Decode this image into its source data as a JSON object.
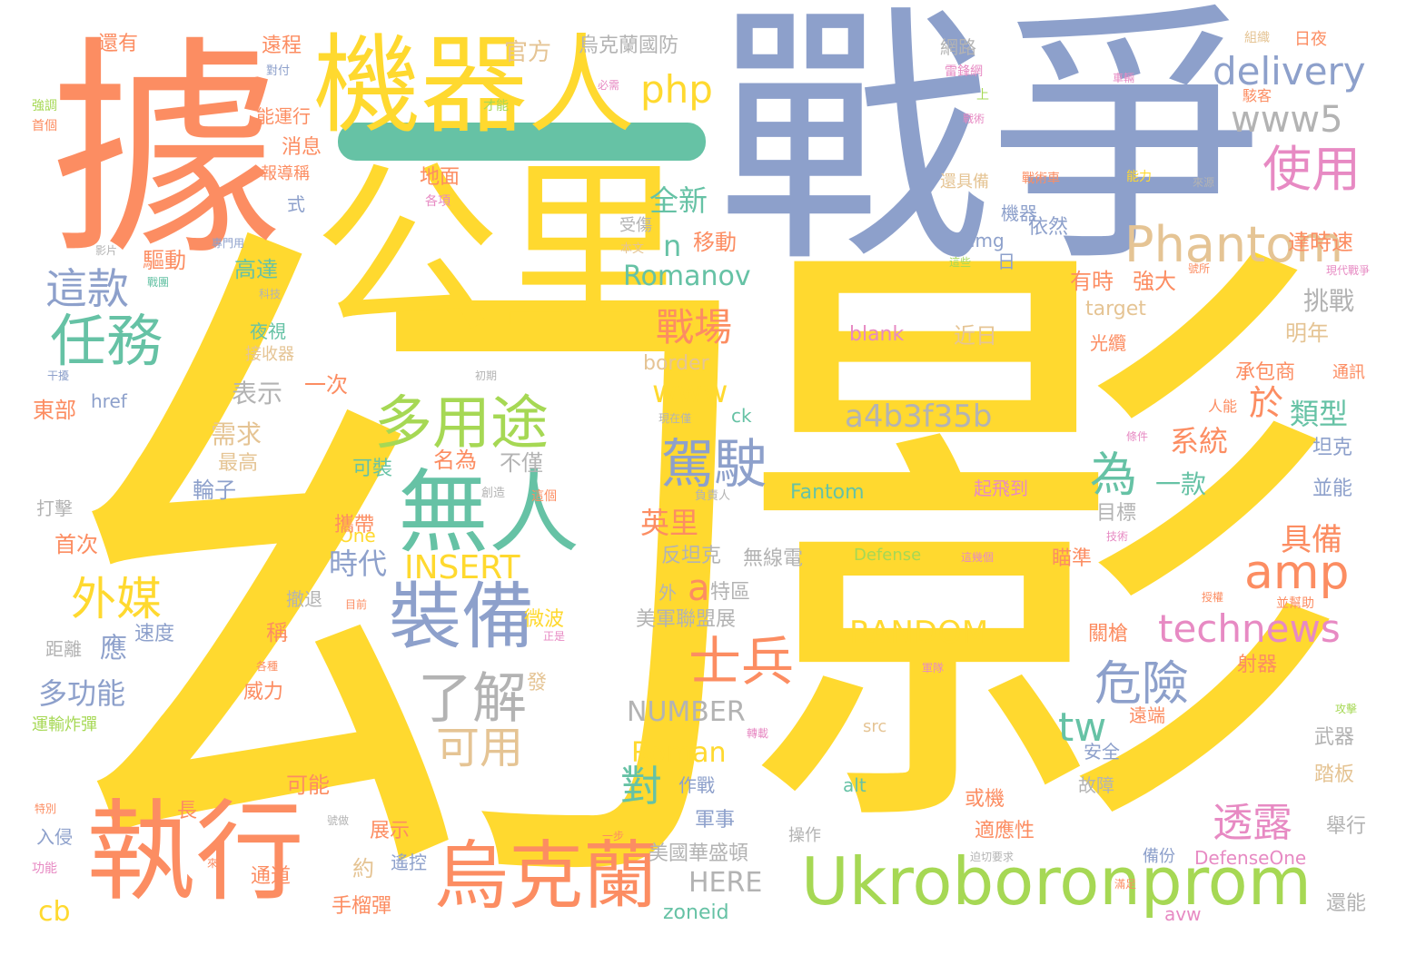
{
  "palette": {
    "yellow": "#ffd92f",
    "orange": "#fc8d62",
    "blue": "#8da0cb",
    "teal": "#66c2a5",
    "green": "#a6d854",
    "pink": "#e78ac3",
    "tan": "#e5c494",
    "grey": "#b3b3b3"
  },
  "words": [
    {
      "text": "幻",
      "color": "yellow"
    },
    {
      "text": "影",
      "color": "yellow"
    },
    {
      "text": "戰爭",
      "color": "blue"
    },
    {
      "text": "據",
      "color": "orange"
    },
    {
      "text": "公里",
      "color": "yellow"
    },
    {
      "text": "機器人",
      "color": "yellow"
    },
    {
      "text": "執行",
      "color": "orange"
    },
    {
      "text": "烏克蘭",
      "color": "orange"
    },
    {
      "text": "Ukroboronprom",
      "color": "green"
    },
    {
      "text": "無人",
      "color": "teal"
    },
    {
      "text": "裝備",
      "color": "blue"
    },
    {
      "text": "多用途",
      "color": "green"
    },
    {
      "text": "任務",
      "color": "teal"
    },
    {
      "text": "這款",
      "color": "blue"
    },
    {
      "text": "外媒",
      "color": "yellow"
    },
    {
      "text": "士兵",
      "color": "orange"
    },
    {
      "text": "了解",
      "color": "grey"
    },
    {
      "text": "駕駛",
      "color": "blue"
    },
    {
      "text": "Phantom",
      "color": "tan"
    },
    {
      "text": "使用",
      "color": "pink"
    },
    {
      "text": "delivery",
      "color": "blue"
    },
    {
      "text": "www5",
      "color": "grey"
    },
    {
      "text": "php",
      "color": "yellow"
    },
    {
      "text": "amp",
      "color": "orange"
    },
    {
      "text": "technews",
      "color": "pink"
    },
    {
      "text": "危險",
      "color": "blue"
    },
    {
      "text": "透露",
      "color": "pink"
    },
    {
      "text": "戰場",
      "color": "orange"
    },
    {
      "text": "為",
      "color": "teal"
    },
    {
      "text": "可用",
      "color": "tan"
    },
    {
      "text": "對",
      "color": "teal"
    },
    {
      "text": "tw",
      "color": "teal"
    },
    {
      "text": "a",
      "color": "orange"
    },
    {
      "text": "a4b3f35b",
      "color": "grey"
    },
    {
      "text": "RANDOM",
      "color": "yellow"
    },
    {
      "text": "INSERT",
      "color": "yellow"
    },
    {
      "text": "NUMBER",
      "color": "grey"
    },
    {
      "text": "Roman",
      "color": "yellow"
    },
    {
      "text": "HERE",
      "color": "grey"
    },
    {
      "text": "Romanov",
      "color": "teal"
    },
    {
      "text": "www",
      "color": "yellow"
    },
    {
      "text": "全新",
      "color": "teal"
    },
    {
      "text": "n",
      "color": "teal"
    },
    {
      "text": "於",
      "color": "orange"
    },
    {
      "text": "類型",
      "color": "teal"
    },
    {
      "text": "系統",
      "color": "orange"
    },
    {
      "text": "一款",
      "color": "teal"
    },
    {
      "text": "具備",
      "color": "orange"
    },
    {
      "text": "挑戰",
      "color": "grey"
    },
    {
      "text": "明年",
      "color": "tan"
    },
    {
      "text": "坦克",
      "color": "blue"
    },
    {
      "text": "並能",
      "color": "blue"
    },
    {
      "text": "blank",
      "color": "pink"
    },
    {
      "text": "近日",
      "color": "tan"
    },
    {
      "text": "target",
      "color": "tan"
    },
    {
      "text": "border",
      "color": "tan"
    },
    {
      "text": "ck",
      "color": "teal"
    },
    {
      "text": "Fantom",
      "color": "teal"
    },
    {
      "text": "Defense",
      "color": "green"
    },
    {
      "text": "DefenseOne",
      "color": "pink"
    },
    {
      "text": "zoneid",
      "color": "teal"
    },
    {
      "text": "avw",
      "color": "pink"
    },
    {
      "text": "alt",
      "color": "teal"
    },
    {
      "text": "src",
      "color": "tan"
    },
    {
      "text": "img",
      "color": "blue"
    },
    {
      "text": "href",
      "color": "blue"
    },
    {
      "text": "cb",
      "color": "yellow"
    },
    {
      "text": "One",
      "color": "yellow"
    },
    {
      "text": "多功能",
      "color": "blue"
    },
    {
      "text": "需求",
      "color": "tan"
    },
    {
      "text": "最高",
      "color": "tan"
    },
    {
      "text": "輪子",
      "color": "blue"
    },
    {
      "text": "表示",
      "color": "grey"
    },
    {
      "text": "一次",
      "color": "orange"
    },
    {
      "text": "時代",
      "color": "blue"
    },
    {
      "text": "應",
      "color": "blue"
    },
    {
      "text": "速度",
      "color": "blue"
    },
    {
      "text": "東部",
      "color": "orange"
    },
    {
      "text": "首次",
      "color": "orange"
    },
    {
      "text": "高達",
      "color": "teal"
    },
    {
      "text": "驅動",
      "color": "orange"
    },
    {
      "text": "消息",
      "color": "orange"
    },
    {
      "text": "能運行",
      "color": "orange"
    },
    {
      "text": "遠程",
      "color": "orange"
    },
    {
      "text": "還有",
      "color": "orange"
    },
    {
      "text": "官方",
      "color": "tan"
    },
    {
      "text": "烏克蘭國防",
      "color": "grey"
    },
    {
      "text": "地面",
      "color": "orange"
    },
    {
      "text": "移動",
      "color": "orange"
    },
    {
      "text": "可裝",
      "color": "teal"
    },
    {
      "text": "名為",
      "color": "orange"
    },
    {
      "text": "不僅",
      "color": "grey"
    },
    {
      "text": "英里",
      "color": "orange"
    },
    {
      "text": "反坦克",
      "color": "grey"
    },
    {
      "text": "特區",
      "color": "grey"
    },
    {
      "text": "美軍聯盟展",
      "color": "grey"
    },
    {
      "text": "無線電",
      "color": "grey"
    },
    {
      "text": "攜帶",
      "color": "orange"
    },
    {
      "text": "手榴彈",
      "color": "orange"
    },
    {
      "text": "美國華盛頓",
      "color": "grey"
    },
    {
      "text": "軍事",
      "color": "blue"
    },
    {
      "text": "作戰",
      "color": "blue"
    },
    {
      "text": "約",
      "color": "tan"
    },
    {
      "text": "威力",
      "color": "orange"
    },
    {
      "text": "稱",
      "color": "orange"
    },
    {
      "text": "可能",
      "color": "orange"
    },
    {
      "text": "展示",
      "color": "orange"
    },
    {
      "text": "通道",
      "color": "orange"
    },
    {
      "text": "遙控",
      "color": "blue"
    },
    {
      "text": "入侵",
      "color": "blue"
    },
    {
      "text": "長",
      "color": "orange"
    },
    {
      "text": "撤退",
      "color": "grey"
    },
    {
      "text": "微波",
      "color": "yellow"
    },
    {
      "text": "發",
      "color": "tan"
    },
    {
      "text": "有時",
      "color": "orange"
    },
    {
      "text": "強大",
      "color": "orange"
    },
    {
      "text": "依然",
      "color": "blue"
    },
    {
      "text": "機器",
      "color": "blue"
    },
    {
      "text": "達時速",
      "color": "orange"
    },
    {
      "text": "承包商",
      "color": "orange"
    },
    {
      "text": "目標",
      "color": "grey"
    },
    {
      "text": "瞄準",
      "color": "orange"
    },
    {
      "text": "關槍",
      "color": "orange"
    },
    {
      "text": "射器",
      "color": "orange"
    },
    {
      "text": "武器",
      "color": "grey"
    },
    {
      "text": "踏板",
      "color": "tan"
    },
    {
      "text": "舉行",
      "color": "grey"
    },
    {
      "text": "還能",
      "color": "grey"
    },
    {
      "text": "安全",
      "color": "blue"
    },
    {
      "text": "遠端",
      "color": "orange"
    },
    {
      "text": "或機",
      "color": "orange"
    },
    {
      "text": "適應性",
      "color": "orange"
    },
    {
      "text": "起飛到",
      "color": "pink"
    },
    {
      "text": "光纜",
      "color": "orange"
    },
    {
      "text": "距離",
      "color": "grey"
    },
    {
      "text": "打擊",
      "color": "grey"
    },
    {
      "text": "運輸炸彈",
      "color": "green"
    },
    {
      "text": "夜視",
      "color": "teal"
    },
    {
      "text": "接收器",
      "color": "tan"
    },
    {
      "text": "日",
      "color": "blue"
    },
    {
      "text": "式",
      "color": "blue"
    },
    {
      "text": "報導稱",
      "color": "orange"
    },
    {
      "text": "網路",
      "color": "grey"
    },
    {
      "text": "日夜",
      "color": "orange"
    },
    {
      "text": "組織",
      "color": "tan"
    },
    {
      "text": "駭客",
      "color": "orange"
    },
    {
      "text": "通訊",
      "color": "orange"
    },
    {
      "text": "人能",
      "color": "orange"
    },
    {
      "text": "外",
      "color": "grey"
    },
    {
      "text": "操作",
      "color": "grey"
    },
    {
      "text": "故障",
      "color": "grey"
    },
    {
      "text": "受傷",
      "color": "grey"
    },
    {
      "text": "備份",
      "color": "blue"
    },
    {
      "text": "強調",
      "color": "green"
    },
    {
      "text": "首個",
      "color": "orange"
    },
    {
      "text": "才能",
      "color": "green"
    },
    {
      "text": "必需",
      "color": "pink"
    },
    {
      "text": "對付",
      "color": "blue"
    },
    {
      "text": "雷鋒網",
      "color": "pink"
    },
    {
      "text": "上",
      "color": "green"
    },
    {
      "text": "戰術",
      "color": "pink"
    },
    {
      "text": "車輛",
      "color": "pink"
    },
    {
      "text": "還具備",
      "color": "tan"
    },
    {
      "text": "戰術車",
      "color": "orange"
    },
    {
      "text": "能力",
      "color": "yellow"
    },
    {
      "text": "來源",
      "color": "grey"
    },
    {
      "text": "各項",
      "color": "pink"
    },
    {
      "text": "影片",
      "color": "grey"
    },
    {
      "text": "專門用",
      "color": "blue"
    },
    {
      "text": "本文",
      "color": "tan"
    },
    {
      "text": "科技",
      "color": "grey"
    },
    {
      "text": "戰團",
      "color": "teal"
    },
    {
      "text": "現代戰爭",
      "color": "pink"
    },
    {
      "text": "號所",
      "color": "orange"
    },
    {
      "text": "這些",
      "color": "green"
    },
    {
      "text": "干擾",
      "color": "blue"
    },
    {
      "text": "初期",
      "color": "grey"
    },
    {
      "text": "現在僅",
      "color": "grey"
    },
    {
      "text": "條件",
      "color": "pink"
    },
    {
      "text": "負責人",
      "color": "grey"
    },
    {
      "text": "創造",
      "color": "grey"
    },
    {
      "text": "這個",
      "color": "orange"
    },
    {
      "text": "技術",
      "color": "pink"
    },
    {
      "text": "目前",
      "color": "orange"
    },
    {
      "text": "正是",
      "color": "pink"
    },
    {
      "text": "各種",
      "color": "orange"
    },
    {
      "text": "軍隊",
      "color": "pink"
    },
    {
      "text": "授權",
      "color": "orange"
    },
    {
      "text": "並幫助",
      "color": "orange"
    },
    {
      "text": "攻擊",
      "color": "green"
    },
    {
      "text": "轉載",
      "color": "pink"
    },
    {
      "text": "特別",
      "color": "orange"
    },
    {
      "text": "號做",
      "color": "grey"
    },
    {
      "text": "一步",
      "color": "orange"
    },
    {
      "text": "功能",
      "color": "pink"
    },
    {
      "text": "來",
      "color": "orange"
    },
    {
      "text": "滿足",
      "color": "orange"
    },
    {
      "text": "迫切要求",
      "color": "grey"
    },
    {
      "text": "這幾個",
      "color": "pink"
    }
  ]
}
